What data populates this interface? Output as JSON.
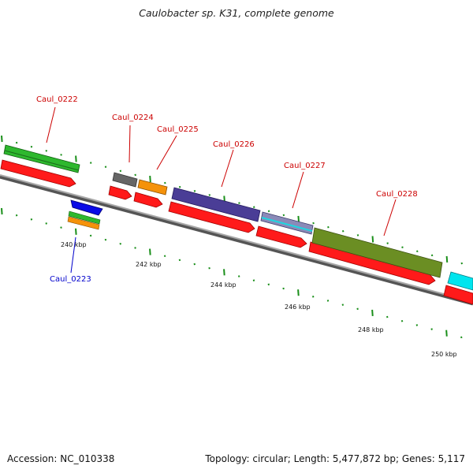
{
  "title": "Caulobacter sp. K31, complete genome",
  "footer": {
    "accession": "Accession: NC_010338",
    "summary": "Topology: circular; Length: 5,477,872 bp; Genes: 5,117"
  },
  "colors": {
    "cds": "#ff1a1a",
    "gene_label_forward": "#cc0000",
    "gene_label_reverse": "#0000cc",
    "tick": "#1a8f1a",
    "backbone": "#8a8a8a"
  },
  "scale": {
    "labels": [
      {
        "kbp": 240,
        "text": "240 kbp"
      },
      {
        "kbp": 242,
        "text": "242 kbp"
      },
      {
        "kbp": 244,
        "text": "244 kbp"
      },
      {
        "kbp": 246,
        "text": "246 kbp"
      },
      {
        "kbp": 248,
        "text": "248 kbp"
      },
      {
        "kbp": 250,
        "text": "250 kbp"
      }
    ]
  },
  "gene_labels": [
    {
      "name": "Caul_0222",
      "strand": "forward"
    },
    {
      "name": "Caul_0223",
      "strand": "reverse"
    },
    {
      "name": "Caul_0224",
      "strand": "forward"
    },
    {
      "name": "Caul_0225",
      "strand": "forward"
    },
    {
      "name": "Caul_0226",
      "strand": "forward"
    },
    {
      "name": "Caul_0227",
      "strand": "forward"
    },
    {
      "name": "Caul_0228",
      "strand": "forward"
    }
  ],
  "features": [
    {
      "name": "Caul_0222",
      "color": "#2eb82e"
    },
    {
      "name": "Caul_0223",
      "color": "#0a0ae6"
    },
    {
      "name": "Caul_0224",
      "color": "#666666"
    },
    {
      "name": "Caul_0225",
      "color": "#f5920a"
    },
    {
      "name": "Caul_0226",
      "color": "#4a3d96"
    },
    {
      "name": "Caul_0227",
      "color": "#8a8ab8"
    },
    {
      "name": "Caul_0228",
      "color": "#6b8e23"
    },
    {
      "name": "next-gene",
      "color": "#00e5ee"
    }
  ]
}
